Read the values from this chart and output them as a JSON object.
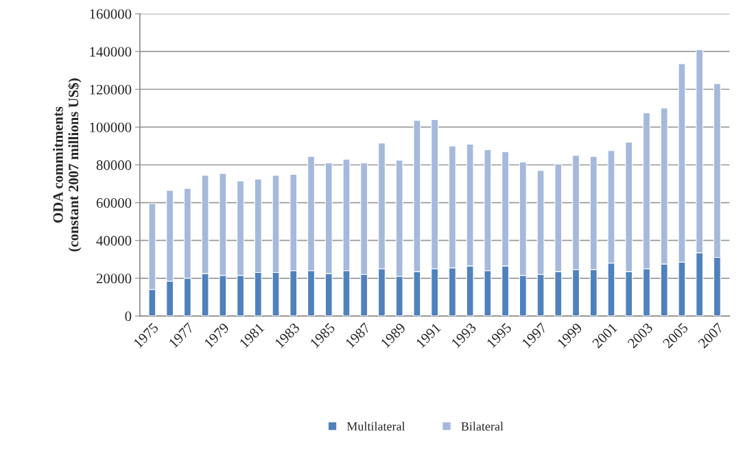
{
  "chart_data": {
    "type": "bar",
    "stacked": true,
    "ylabel": "ODA commitments\n(constant 2007 millions US$)",
    "categories": [
      "1975",
      null,
      "1977",
      null,
      "1979",
      null,
      "1981",
      null,
      "1983",
      null,
      "1985",
      null,
      "1987",
      null,
      "1989",
      null,
      "1991",
      null,
      "1993",
      null,
      "1995",
      null,
      "1997",
      null,
      "1999",
      null,
      "2001",
      null,
      "2003",
      null,
      "2005",
      null,
      "2007"
    ],
    "series": [
      {
        "name": "Multilateral",
        "color": "#4f81bd",
        "values": [
          14000,
          18500,
          20000,
          22500,
          21500,
          21500,
          23000,
          23000,
          24000,
          24000,
          22500,
          24000,
          22000,
          25000,
          21000,
          23500,
          25000,
          25500,
          26500,
          24000,
          26500,
          21500,
          22000,
          23500,
          24500,
          24500,
          28000,
          23500,
          25000,
          27500,
          28500,
          33500,
          31000
        ]
      },
      {
        "name": "Bilateral",
        "color": "#a5b9dc",
        "values": [
          45500,
          48000,
          47500,
          52000,
          54000,
          50000,
          49500,
          51500,
          51000,
          60500,
          58500,
          59000,
          59000,
          66500,
          61500,
          80000,
          79000,
          64500,
          64500,
          64000,
          60500,
          60000,
          55000,
          57000,
          60500,
          60000,
          59500,
          68500,
          82500,
          82500,
          105000,
          107500,
          92000
        ]
      }
    ],
    "ylim": [
      0,
      160000
    ],
    "yticks": [
      0,
      20000,
      40000,
      60000,
      80000,
      100000,
      120000,
      140000,
      160000
    ],
    "grid": "y",
    "legend": "bottom"
  }
}
